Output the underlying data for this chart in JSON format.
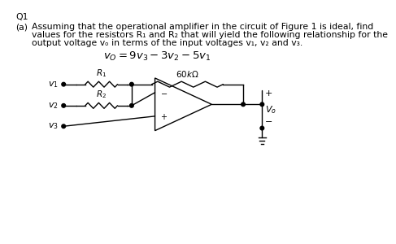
{
  "bg_color": "#ffffff",
  "text_color": "#000000",
  "title": "Q1",
  "para_label": "(a)",
  "para_text_line1": "Assuming that the operational amplifier in the circuit of Figure 1 is ideal, find",
  "para_text_line2": "values for the resistors R₁ and R₂ that will yield the following relationship for the",
  "para_text_line3": "output voltage vₒ in terms of the input voltages v₁, v₂ and v₃.",
  "equation": "$v_O = 9v_3 - 3v_2 - 5v_1$",
  "circuit": {
    "v1_label": "$v_1$",
    "v2_label": "$v_2$",
    "v3_label": "$v_3$",
    "r1_label": "$R_1$",
    "r2_label": "$R_2$",
    "rf_label": "$60k\\Omega$",
    "vo_label": "$V_o$",
    "plus": "+",
    "minus": "−"
  }
}
